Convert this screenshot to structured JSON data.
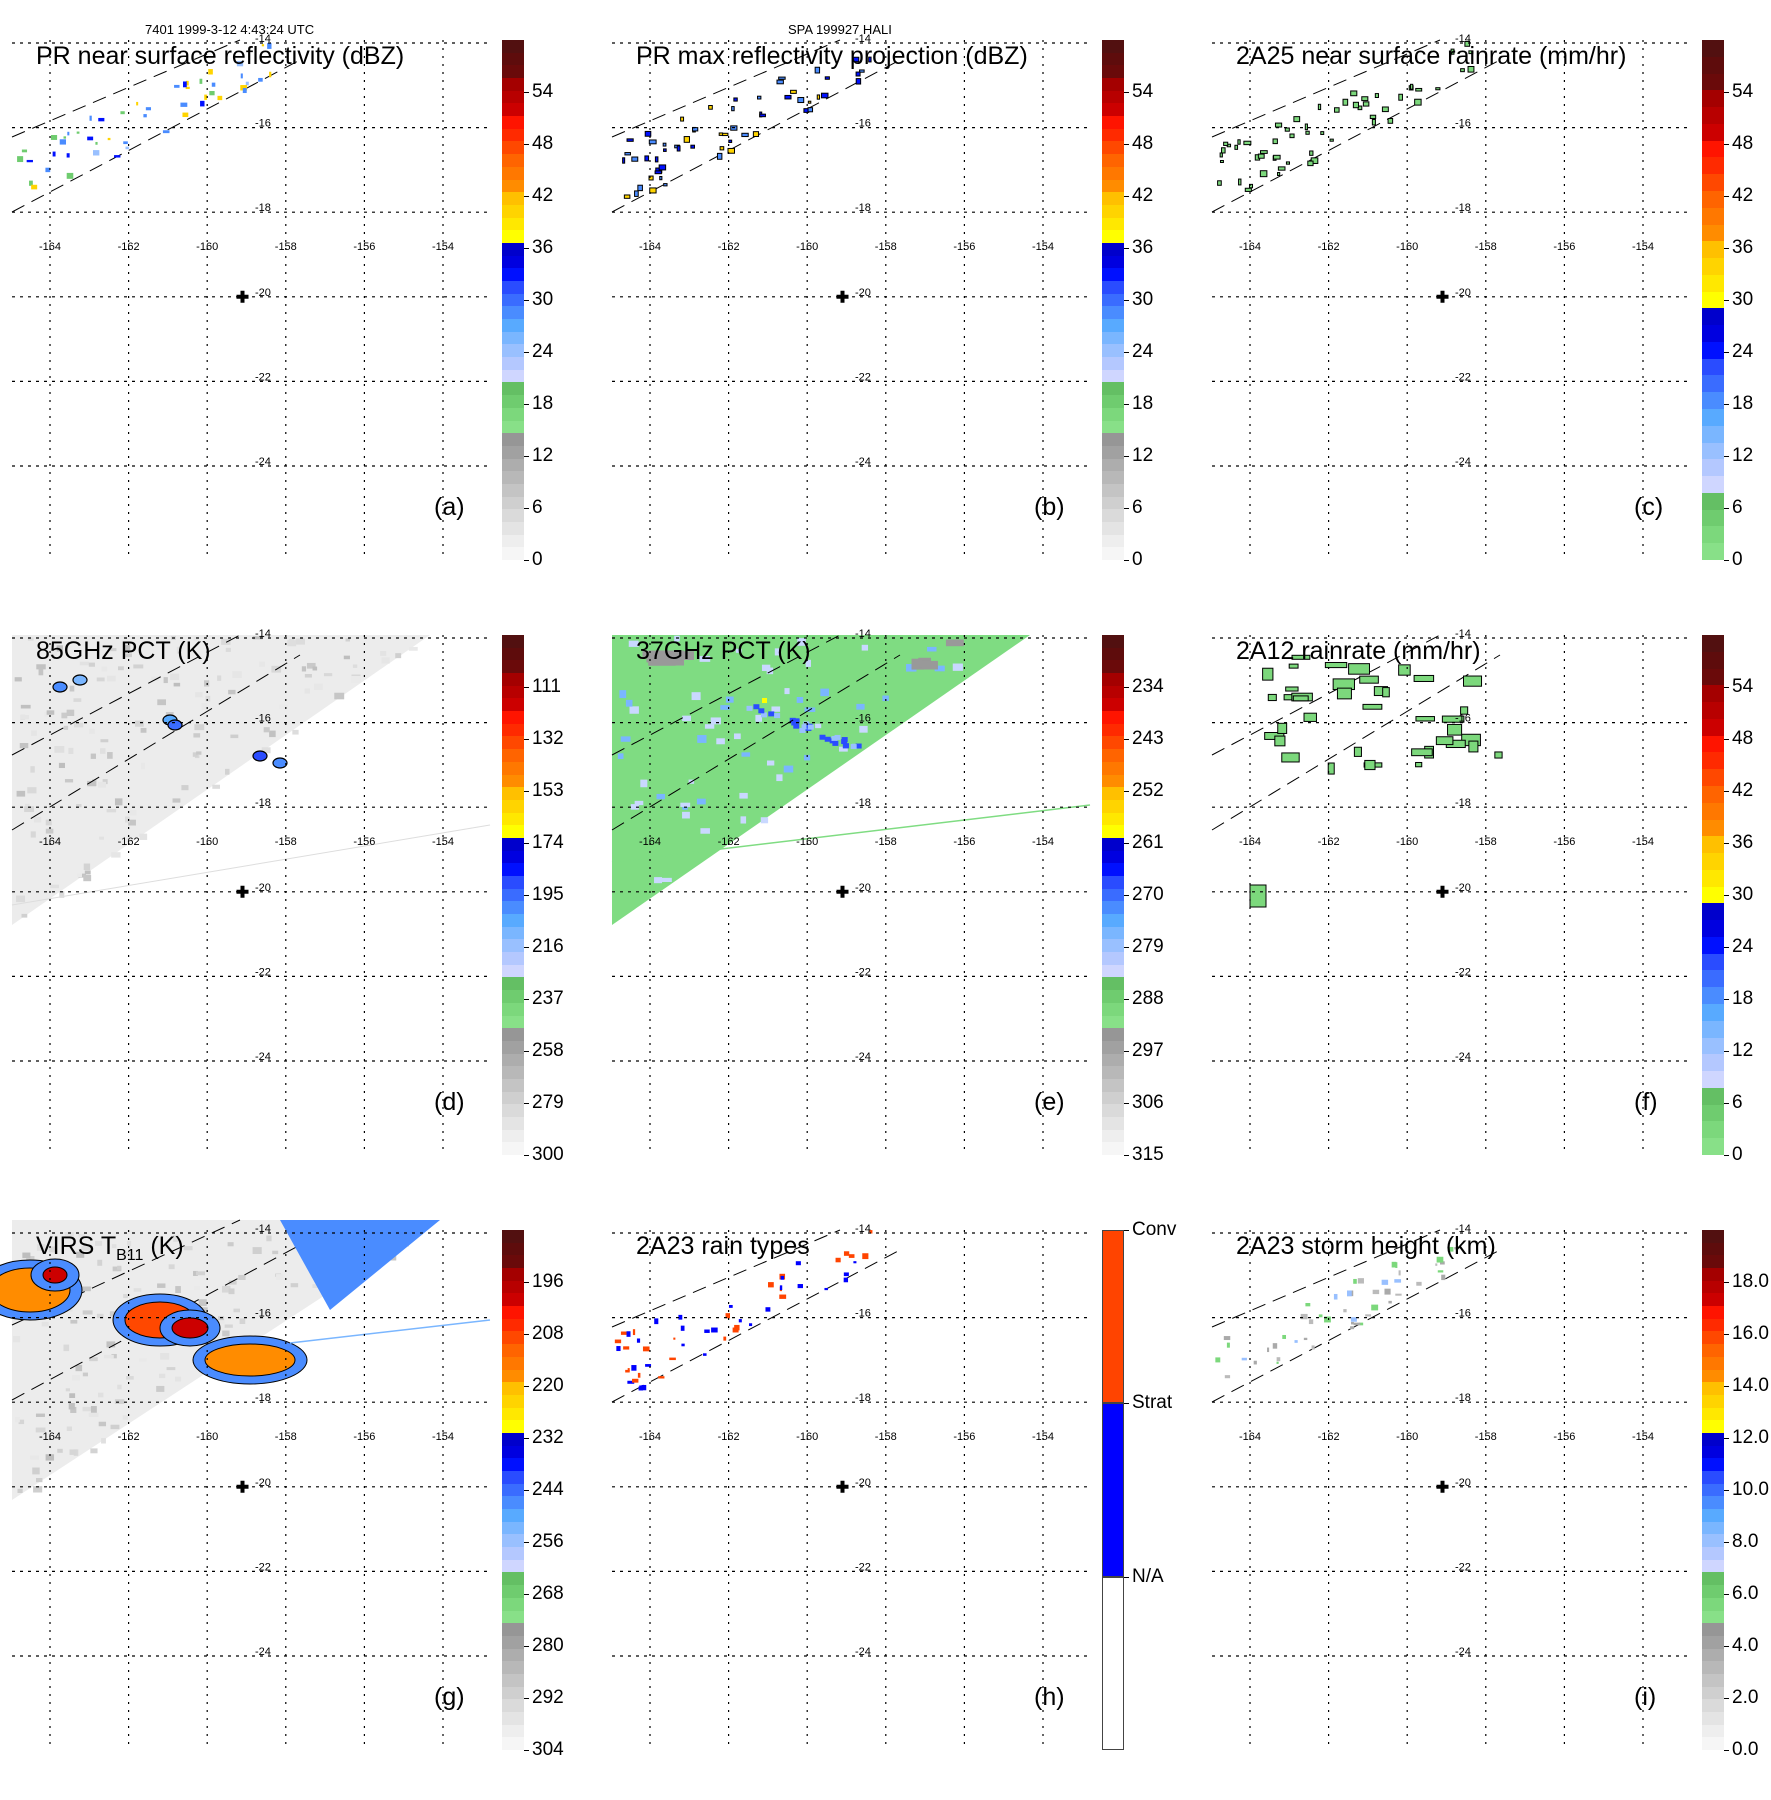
{
  "header": {
    "left": "7401 1999-3-12 4:43:24 UTC",
    "center": "SPA 199927 HALI"
  },
  "map": {
    "lon_ticks": [
      "-164",
      "-162",
      "-160",
      "-158",
      "-156",
      "-154"
    ],
    "lat_ticks": [
      "-14",
      "-16",
      "-18",
      "-20",
      "-22",
      "-24"
    ],
    "lon_range": [
      -165,
      -153
    ],
    "lat_range": [
      -14,
      -25.5
    ],
    "center_marker": {
      "lon": -159,
      "lat": -20,
      "icon": "plus-icon"
    }
  },
  "palette": {
    "standard": [
      "#f6f6f6",
      "#eeeeee",
      "#e4e4e4",
      "#dadada",
      "#cfcfcf",
      "#c4c4c4",
      "#b8b8b8",
      "#adadad",
      "#a1a1a1",
      "#969696",
      "#88e088",
      "#7cd87c",
      "#6fcc6f",
      "#64bf64",
      "#cfd6ff",
      "#b4c8ff",
      "#99c0ff",
      "#7ab6ff",
      "#58aaff",
      "#4a8cff",
      "#3a6cff",
      "#2a4cff",
      "#0010ff",
      "#0000e0",
      "#0000cc",
      "#ffff00",
      "#ffe800",
      "#ffd400",
      "#ffc000",
      "#ff8c00",
      "#ff7800",
      "#ff6400",
      "#ff4800",
      "#ff2a00",
      "#ff1400",
      "#cc0000",
      "#b80000",
      "#a40000",
      "#6a0a0a",
      "#5e0c0c",
      "#521010"
    ],
    "rain": [
      "#88e088",
      "#7cd87c",
      "#6fcc6f",
      "#64bf64",
      "#cfd6ff",
      "#b4c8ff",
      "#99c0ff",
      "#7ab6ff",
      "#58aaff",
      "#4a8cff",
      "#3a6cff",
      "#2a4cff",
      "#0010ff",
      "#0000e0",
      "#0000cc",
      "#ffff00",
      "#ffe800",
      "#ffd400",
      "#ffc000",
      "#ff8c00",
      "#ff7800",
      "#ff6400",
      "#ff4800",
      "#ff2a00",
      "#ff1400",
      "#cc0000",
      "#b80000",
      "#a40000",
      "#6a0a0a",
      "#5e0c0c",
      "#521010"
    ],
    "raintype": [
      "#ffffff",
      "#0000ff",
      "#ff4400"
    ]
  },
  "chart_data": [
    {
      "id": "a",
      "type": "heatmap",
      "title": "PR near surface reflectivity (dBZ)",
      "panel_label": "(a)",
      "colorbar": {
        "palette": "standard",
        "ticks": [
          "54",
          "48",
          "42",
          "36",
          "30",
          "24",
          "18",
          "12",
          "6",
          "0"
        ],
        "range": [
          0,
          60
        ]
      },
      "swath": "pr",
      "background": "none",
      "features": "scatter-pr"
    },
    {
      "id": "b",
      "type": "heatmap",
      "title": "PR max reflectivity projection (dBZ)",
      "panel_label": "(b)",
      "colorbar": {
        "palette": "standard",
        "ticks": [
          "54",
          "48",
          "42",
          "36",
          "30",
          "24",
          "18",
          "12",
          "6",
          "0"
        ],
        "range": [
          0,
          60
        ]
      },
      "swath": "pr",
      "background": "none",
      "features": "contour-pr"
    },
    {
      "id": "c",
      "type": "heatmap",
      "title": "2A25 near surface rainrate (mm/hr)",
      "panel_label": "(c)",
      "colorbar": {
        "palette": "rain",
        "ticks": [
          "54",
          "48",
          "42",
          "36",
          "30",
          "24",
          "18",
          "12",
          "6",
          "0"
        ],
        "range": [
          0,
          60
        ]
      },
      "swath": "pr",
      "background": "none",
      "features": "contour-rain"
    },
    {
      "id": "d",
      "type": "heatmap",
      "title": "85GHz PCT (K)",
      "panel_label": "(d)",
      "colorbar": {
        "palette": "standard",
        "ticks": [
          "111",
          "132",
          "153",
          "174",
          "195",
          "216",
          "237",
          "258",
          "279",
          "300"
        ],
        "range": [
          300,
          90
        ]
      },
      "swath": "tmi",
      "background": "grey",
      "features": "few"
    },
    {
      "id": "e",
      "type": "heatmap",
      "title": "37GHz PCT (K)",
      "panel_label": "(e)",
      "colorbar": {
        "palette": "standard",
        "ticks": [
          "234",
          "243",
          "252",
          "261",
          "270",
          "279",
          "288",
          "297",
          "306",
          "315"
        ],
        "range": [
          315,
          225
        ]
      },
      "swath": "tmi",
      "background": "green",
      "features": "band"
    },
    {
      "id": "f",
      "type": "heatmap",
      "title": "2A12 rainrate (mm/hr)",
      "panel_label": "(f)",
      "colorbar": {
        "palette": "rain",
        "ticks": [
          "54",
          "48",
          "42",
          "36",
          "30",
          "24",
          "18",
          "12",
          "6",
          "0"
        ],
        "range": [
          0,
          60
        ]
      },
      "swath": "pr",
      "background": "none",
      "features": "blobs-green"
    },
    {
      "id": "g",
      "type": "heatmap",
      "title": "VIRS T",
      "title_sub": "B11",
      "title_suffix": " (K)",
      "panel_label": "(g)",
      "colorbar": {
        "palette": "standard",
        "ticks": [
          "196",
          "208",
          "220",
          "232",
          "244",
          "256",
          "268",
          "280",
          "292",
          "304"
        ],
        "range": [
          304,
          184
        ]
      },
      "swath": "virs",
      "background": "grey",
      "features": "clouds"
    },
    {
      "id": "h",
      "type": "heatmap",
      "title": "2A23 rain types",
      "panel_label": "(h)",
      "colorbar": {
        "palette": "raintype",
        "categories": [
          "N/A",
          "Strat",
          "Conv"
        ]
      },
      "swath": "pr",
      "background": "none",
      "features": "raintype"
    },
    {
      "id": "i",
      "type": "heatmap",
      "title": "2A23 storm height (km)",
      "panel_label": "(i)",
      "colorbar": {
        "palette": "standard",
        "ticks": [
          "18.0",
          "16.0",
          "14.0",
          "12.0",
          "10.0",
          "8.0",
          "6.0",
          "4.0",
          "2.0",
          "0.0"
        ],
        "range": [
          0,
          20
        ]
      },
      "swath": "pr",
      "background": "none",
      "features": "height"
    }
  ]
}
